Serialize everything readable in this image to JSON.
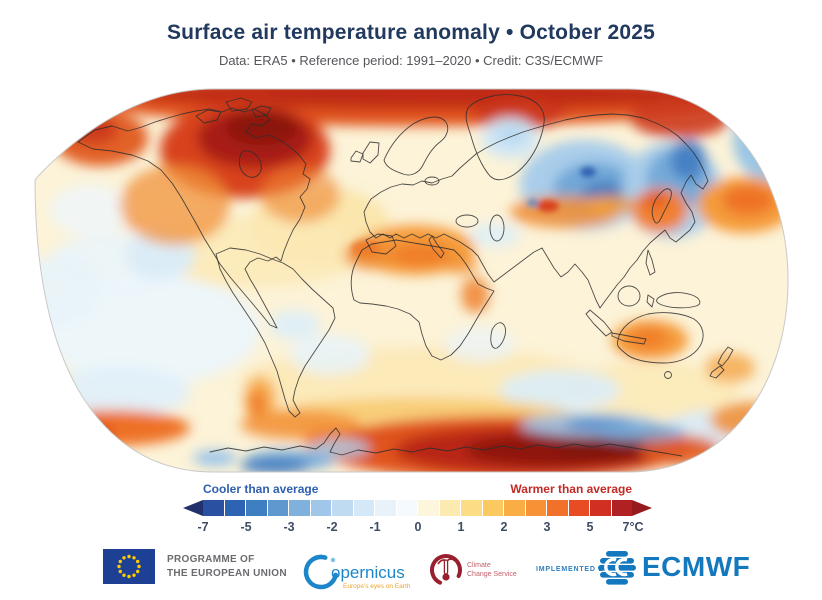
{
  "header": {
    "title": "Surface air temperature anomaly • October 2025",
    "subtitle": "Data: ERA5 • Reference period: 1991–2020 • Credit: C3S/ECMWF"
  },
  "legend": {
    "cooler_label": "Cooler than average",
    "warmer_label": "Warmer than average",
    "ticks": [
      "-7",
      "-5",
      "-3",
      "-2",
      "-1",
      "0",
      "1",
      "2",
      "3",
      "5",
      "7°C"
    ],
    "colors": [
      "#2a50a1",
      "#2d63b2",
      "#3f7fc1",
      "#5f98ce",
      "#80b1dc",
      "#a0c7e9",
      "#bedbf1",
      "#d5e8f8",
      "#e7f2fb",
      "#f4fafd",
      "#fdf6dc",
      "#fdeab0",
      "#fcdd85",
      "#fbc95f",
      "#f9ad44",
      "#f69136",
      "#f2712a",
      "#e74c24",
      "#d02f22",
      "#b02124"
    ],
    "left_arrow_color": "#22306b",
    "right_arrow_color": "#951b1f",
    "cool_label_color": "#2d5fae",
    "warm_label_color": "#c22a25"
  },
  "chart_data": {
    "type": "heatmap",
    "title": "Surface air temperature anomaly • October 2025",
    "unit": "°C",
    "scale_ticks": [
      -7,
      -5,
      -3,
      -2,
      -1,
      0,
      1,
      2,
      3,
      5,
      7
    ],
    "scale_range": [
      -7,
      7
    ],
    "projection": "Robinson world map",
    "regions": [
      {
        "region": "Arctic Ocean, northern Canada and Siberian Arctic coast",
        "anomaly": "strongly warmer (dark red, ~+3 to +7)"
      },
      {
        "region": "Alaska and northwestern Canada",
        "anomaly": "warmer (orange-red)"
      },
      {
        "region": "Greenland interior",
        "anomaly": "slightly cooler (light blue)"
      },
      {
        "region": "Western and central Siberia",
        "anomaly": "cooler (blue, ~-1 to -3)"
      },
      {
        "region": "Northeast Asia / Sea of Okhotsk",
        "anomaly": "cooler (blue)"
      },
      {
        "region": "Europe and North Atlantic",
        "anomaly": "near average to slightly warmer (pale yellow)"
      },
      {
        "region": "Sahara / North Africa",
        "anomaly": "warmer (orange, ~+1 to +3)"
      },
      {
        "region": "Central Asia",
        "anomaly": "warmer (orange with red spots)"
      },
      {
        "region": "North Pacific",
        "anomaly": "warmer (orange)"
      },
      {
        "region": "Southeast Pacific, South Atlantic and southern Indian Ocean patches",
        "anomaly": "slightly cooler (pale blue)"
      },
      {
        "region": "Argentina and parts of Southern Ocean",
        "anomaly": "warmer (orange)"
      },
      {
        "region": "Western/central Australia",
        "anomaly": "warmer (orange)"
      },
      {
        "region": "East Antarctica",
        "anomaly": "strongly warmer (dark red, ~+5 to +7)"
      },
      {
        "region": "Antarctic coastal sectors",
        "anomaly": "cooler (blue)"
      }
    ]
  },
  "footer": {
    "eu": {
      "line1": "PROGRAMME OF",
      "line2": "THE EUROPEAN UNION"
    },
    "copernicus": {
      "name": "opernicus",
      "tagline": "Europe's eyes on Earth"
    },
    "c3s": {
      "line1": "Climate",
      "line2": "Change Service"
    },
    "implemented_by": "IMPLEMENTED BY",
    "ecmwf": "ECMWF"
  }
}
